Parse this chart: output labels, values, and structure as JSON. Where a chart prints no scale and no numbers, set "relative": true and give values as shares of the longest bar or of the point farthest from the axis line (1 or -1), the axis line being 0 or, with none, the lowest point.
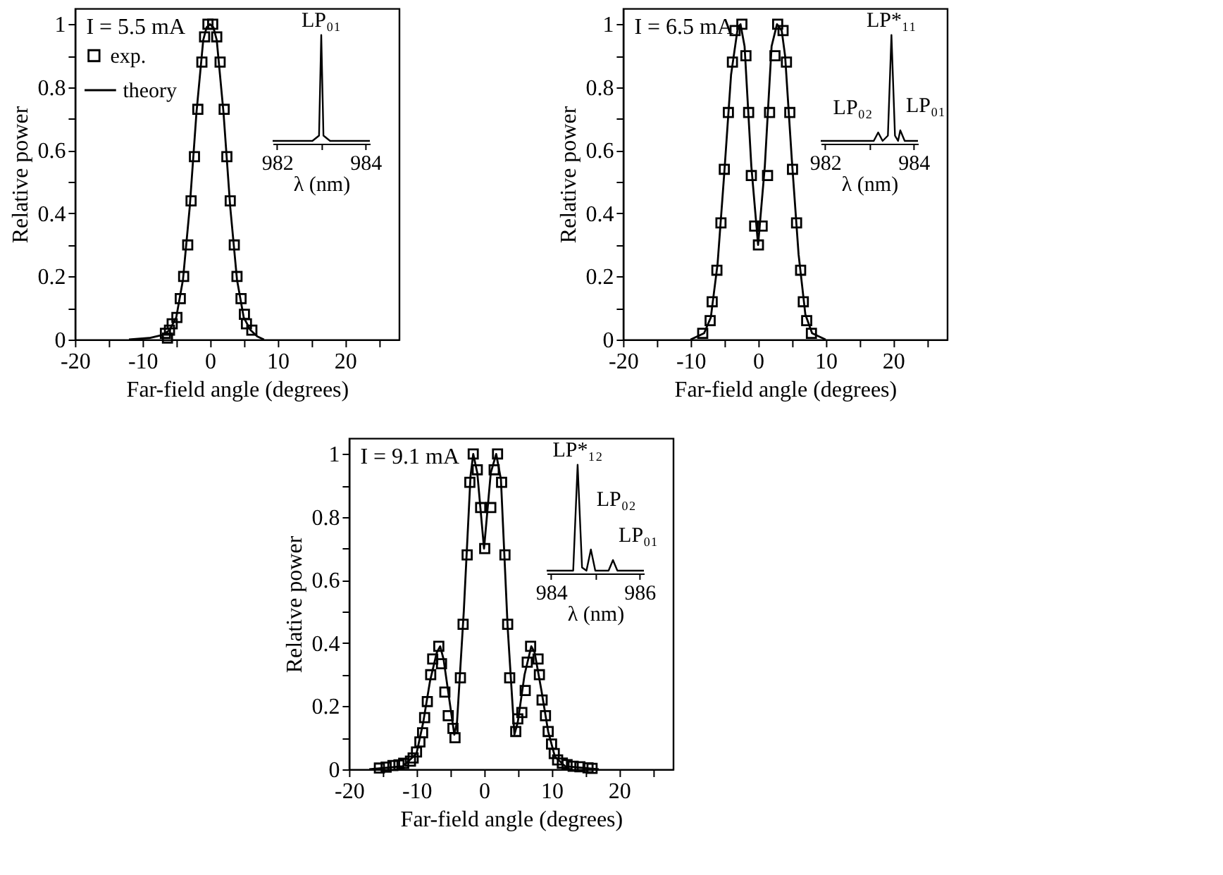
{
  "chart_data": [
    {
      "type": "line",
      "xlabel": "Far-field angle (degrees)",
      "ylabel": "Relative power",
      "annotations": [
        "I = 5.5 mA"
      ],
      "legend": "top left",
      "xlim": [
        -20,
        28
      ],
      "ylim": [
        0,
        1.05
      ],
      "xticks": [
        -20,
        {
          "value": -15,
          "label": null
        },
        -10,
        {
          "value": -5,
          "label": null
        },
        0,
        {
          "value": 5,
          "label": null
        },
        10,
        {
          "value": 15,
          "label": null
        },
        20,
        {
          "value": 25,
          "label": null
        }
      ],
      "yticks": [
        0,
        {
          "value": 0.1,
          "label": null
        },
        0.2,
        {
          "value": 0.3,
          "label": null
        },
        0.4,
        {
          "value": 0.5,
          "label": null
        },
        0.6,
        {
          "value": 0.7,
          "label": null
        },
        0.8,
        {
          "value": 0.9,
          "label": null
        },
        1
      ],
      "series": [
        {
          "name": "exp.",
          "type": "scatter",
          "marker": "square",
          "color": "#000000",
          "x": [
            -6.6,
            -6.3,
            -6.0,
            -5.6,
            -4.9,
            -4.4,
            -3.9,
            -3.3,
            -2.8,
            -2.3,
            -1.8,
            -1.2,
            -0.8,
            -0.3,
            0.4,
            1.0,
            1.5,
            2.1,
            2.5,
            3.0,
            3.6,
            4.0,
            4.6,
            5.1,
            5.4,
            6.2
          ],
          "values": [
            0.02,
            0.005,
            0.03,
            0.05,
            0.07,
            0.13,
            0.2,
            0.3,
            0.44,
            0.58,
            0.73,
            0.88,
            0.96,
            1.0,
            1.0,
            0.96,
            0.88,
            0.73,
            0.58,
            0.44,
            0.3,
            0.2,
            0.13,
            0.08,
            0.05,
            0.03
          ]
        },
        {
          "name": "theory",
          "type": "line",
          "color": "#000000",
          "x": [
            -12,
            -9,
            -7,
            -6,
            -5,
            -4,
            -3,
            -2,
            -1,
            -0.5,
            0,
            0.5,
            1,
            2,
            3,
            4,
            5,
            6,
            7,
            8
          ],
          "values": [
            0,
            0.005,
            0.015,
            0.03,
            0.07,
            0.19,
            0.42,
            0.72,
            0.95,
            0.99,
            1.0,
            0.99,
            0.95,
            0.72,
            0.42,
            0.19,
            0.07,
            0.03,
            0.01,
            0
          ]
        }
      ]
    },
    {
      "type": "line",
      "relative": true,
      "xlabel": "λ (nm)",
      "xlim": [
        981.9,
        984.1
      ],
      "xticks": [
        982,
        {
          "value": 983,
          "label": null
        },
        984
      ],
      "annotations": [
        {
          "text": "LP₀₁",
          "x": 983.0,
          "y": 1
        }
      ],
      "series": [
        {
          "color": "#000000",
          "x": [
            981.9,
            982.8,
            982.95,
            983.0,
            983.05,
            983.2,
            984.1
          ],
          "values": [
            0,
            0,
            0.05,
            1,
            0.05,
            0,
            0
          ]
        }
      ]
    },
    {
      "type": "line",
      "xlabel": "Far-field angle (degrees)",
      "ylabel": "Relative power",
      "annotations": [
        "I = 6.5 mA"
      ],
      "xlim": [
        -20,
        28
      ],
      "ylim": [
        0,
        1.05
      ],
      "xticks": [
        -20,
        {
          "value": -15,
          "label": null
        },
        -10,
        {
          "value": -5,
          "label": null
        },
        0,
        {
          "value": 5,
          "label": null
        },
        10,
        {
          "value": 15,
          "label": null
        },
        20,
        {
          "value": 25,
          "label": null
        }
      ],
      "yticks": [
        0,
        {
          "value": 0.1,
          "label": null
        },
        0.2,
        {
          "value": 0.3,
          "label": null
        },
        0.4,
        {
          "value": 0.5,
          "label": null
        },
        0.6,
        {
          "value": 0.7,
          "label": null
        },
        0.8,
        {
          "value": 0.9,
          "label": null
        },
        1
      ],
      "series": [
        {
          "type": "scatter",
          "marker": "square",
          "color": "#000000",
          "x": [
            -8.2,
            -7.1,
            -6.8,
            -6.1,
            -5.5,
            -5.0,
            -4.4,
            -3.8,
            -3.4,
            -2.4,
            -1.8,
            -1.4,
            -1.0,
            -0.5,
            0.05,
            0.6,
            1.4,
            1.7,
            2.5,
            2.9,
            3.7,
            4.2,
            4.7,
            5.1,
            5.7,
            6.3,
            6.7,
            7.2,
            7.9
          ],
          "values": [
            0.02,
            0.06,
            0.12,
            0.22,
            0.37,
            0.54,
            0.72,
            0.88,
            0.98,
            1.0,
            0.9,
            0.72,
            0.52,
            0.36,
            0.3,
            0.36,
            0.52,
            0.72,
            0.9,
            1.0,
            0.98,
            0.88,
            0.72,
            0.54,
            0.37,
            0.22,
            0.12,
            0.06,
            0.02
          ]
        },
        {
          "type": "line",
          "color": "#000000",
          "x": [
            -10,
            -8,
            -7,
            -6,
            -5,
            -4,
            -3,
            -2.6,
            -2,
            -1,
            0,
            1,
            2,
            2.8,
            3.5,
            4,
            5,
            6,
            7,
            8,
            10
          ],
          "values": [
            0,
            0.02,
            0.07,
            0.24,
            0.53,
            0.84,
            0.99,
            1.0,
            0.93,
            0.55,
            0.3,
            0.55,
            0.93,
            1.0,
            0.98,
            0.9,
            0.57,
            0.27,
            0.08,
            0.02,
            0
          ]
        }
      ]
    },
    {
      "type": "line",
      "relative": true,
      "xlabel": "λ (nm)",
      "xlim": [
        981.9,
        984.1
      ],
      "xticks": [
        982,
        {
          "value": 983,
          "label": null
        },
        984
      ],
      "annotations": [
        {
          "text": "LP*₁₁",
          "x": 983.5,
          "y": 1
        },
        {
          "text": "LP₀₂",
          "x": 983.2,
          "y": 0.08
        },
        {
          "text": "LP₀₁",
          "x": 983.7,
          "y": 0.1
        }
      ],
      "series": [
        {
          "color": "#000000",
          "x": [
            981.9,
            983.1,
            983.2,
            983.3,
            983.42,
            983.5,
            983.58,
            983.65,
            983.7,
            983.8,
            984.1
          ],
          "values": [
            0,
            0,
            0.08,
            0,
            0.05,
            1,
            0.05,
            0,
            0.1,
            0,
            0
          ]
        }
      ]
    },
    {
      "type": "line",
      "xlabel": "Far-field angle (degrees)",
      "ylabel": "Relative power",
      "annotations": [
        "I = 9.1 mA"
      ],
      "xlim": [
        -20,
        28
      ],
      "ylim": [
        0,
        1.05
      ],
      "xticks": [
        -20,
        {
          "value": -15,
          "label": null
        },
        -10,
        {
          "value": -5,
          "label": null
        },
        0,
        {
          "value": 5,
          "label": null
        },
        10,
        {
          "value": 15,
          "label": null
        },
        20,
        {
          "value": 25,
          "label": null
        }
      ],
      "yticks": [
        0,
        {
          "value": 0.1,
          "label": null
        },
        0.2,
        {
          "value": 0.3,
          "label": null
        },
        0.4,
        {
          "value": 0.5,
          "label": null
        },
        0.6,
        {
          "value": 0.7,
          "label": null
        },
        0.8,
        {
          "value": 0.9,
          "label": null
        },
        1
      ],
      "series": [
        {
          "type": "scatter",
          "marker": "square",
          "color": "#000000",
          "x": [
            -15.5,
            -14.5,
            -13.5,
            -12.6,
            -11.9,
            -10.9,
            -10.5,
            -10.0,
            -9.5,
            -9.1,
            -8.8,
            -8.4,
            -7.9,
            -7.6,
            -6.7,
            -6.3,
            -5.8,
            -5.3,
            -4.6,
            -4.3,
            -3.5,
            -3.1,
            -2.5,
            -2.1,
            -1.6,
            -1.0,
            -0.5,
            0.1,
            1.0,
            1.5,
            2.0,
            2.6,
            3.1,
            3.5,
            3.8,
            4.7,
            5.0,
            5.6,
            6.1,
            6.4,
            6.9,
            8.0,
            8.2,
            8.6,
            9.1,
            9.5,
            10.0,
            10.4,
            10.9,
            11.6,
            12.3,
            13.2,
            14.2,
            15.4,
            16.0
          ],
          "values": [
            0.004,
            0.007,
            0.012,
            0.014,
            0.019,
            0.026,
            0.036,
            0.055,
            0.087,
            0.116,
            0.164,
            0.215,
            0.3,
            0.35,
            0.39,
            0.335,
            0.245,
            0.17,
            0.13,
            0.1,
            0.29,
            0.46,
            0.68,
            0.91,
            1.0,
            0.95,
            0.83,
            0.7,
            0.83,
            0.95,
            1.0,
            0.91,
            0.68,
            0.46,
            0.29,
            0.12,
            0.16,
            0.18,
            0.25,
            0.34,
            0.39,
            0.35,
            0.3,
            0.22,
            0.17,
            0.12,
            0.08,
            0.05,
            0.03,
            0.02,
            0.015,
            0.01,
            0.008,
            0.005,
            0.003
          ]
        },
        {
          "type": "line",
          "color": "#000000",
          "x": [
            -17,
            -12,
            -10,
            -9,
            -8,
            -7,
            -6.5,
            -6,
            -5,
            -4.4,
            -4,
            -3,
            -2,
            -1.6,
            -1,
            0,
            1,
            1.8,
            2.5,
            3.5,
            4.5,
            5,
            6,
            7,
            7.5,
            8.5,
            9.5,
            10.5,
            12,
            17
          ],
          "values": [
            0,
            0.01,
            0.05,
            0.15,
            0.28,
            0.37,
            0.39,
            0.35,
            0.2,
            0.11,
            0.15,
            0.5,
            0.93,
            1.0,
            0.94,
            0.7,
            0.94,
            1.0,
            0.92,
            0.45,
            0.11,
            0.15,
            0.3,
            0.39,
            0.37,
            0.25,
            0.12,
            0.04,
            0.01,
            0
          ]
        }
      ]
    },
    {
      "type": "line",
      "relative": true,
      "xlabel": "λ (nm)",
      "xlim": [
        983.9,
        986.1
      ],
      "xticks": [
        984,
        {
          "value": 985,
          "label": null
        },
        986
      ],
      "annotations": [
        {
          "text": "LP*₁₂",
          "x": 984.6,
          "y": 1
        },
        {
          "text": "LP₀₂",
          "x": 984.9,
          "y": 0.2
        },
        {
          "text": "LP₀₁",
          "x": 985.4,
          "y": 0.1
        }
      ],
      "series": [
        {
          "color": "#000000",
          "x": [
            983.9,
            984.5,
            984.6,
            984.7,
            984.8,
            984.9,
            985.0,
            985.3,
            985.4,
            985.5,
            986.1
          ],
          "values": [
            0,
            0,
            1,
            0.03,
            0,
            0.2,
            0,
            0,
            0.1,
            0,
            0
          ]
        }
      ]
    }
  ]
}
